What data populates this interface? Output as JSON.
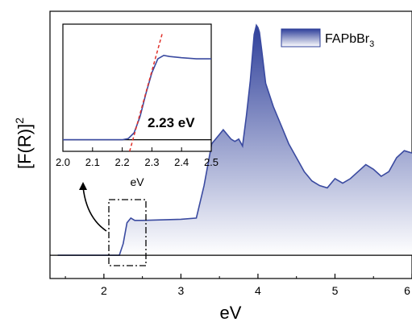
{
  "chart_data": [
    {
      "type": "area",
      "xlabel": "eV",
      "ylabel_base": "[F(R)]",
      "ylabel_sup": "2",
      "xlim": [
        1.3,
        6.0
      ],
      "xticks": [
        2,
        3,
        4,
        5,
        6
      ],
      "xtick_labels": [
        "2",
        "3",
        "4",
        "5",
        "6"
      ],
      "yticks_visible": false,
      "grid": false,
      "legend": {
        "position": "top-right",
        "label_base": "FAPbBr",
        "label_sub": "3"
      },
      "colors": {
        "line": "#3a4aa0",
        "fill_top": "#2e3f9a",
        "fill_bottom": "#ffffff",
        "baseline": "#000000"
      },
      "baseline_y": 0.0,
      "ylim": [
        -0.1,
        1.05
      ],
      "series": [
        {
          "x": [
            1.4,
            2.2,
            2.25,
            2.3,
            2.35,
            2.4,
            2.5,
            3.0,
            3.2,
            3.3,
            3.4,
            3.5,
            3.55,
            3.6,
            3.65,
            3.7,
            3.75,
            3.8,
            3.85,
            3.9,
            3.95,
            3.98,
            4.0,
            4.02,
            4.05,
            4.1,
            4.2,
            4.3,
            4.4,
            4.5,
            4.6,
            4.7,
            4.8,
            4.9,
            5.0,
            5.1,
            5.2,
            5.3,
            5.4,
            5.5,
            5.6,
            5.7,
            5.8,
            5.9,
            6.0
          ],
          "y": [
            0.0,
            0.0,
            0.05,
            0.14,
            0.16,
            0.15,
            0.15,
            0.155,
            0.16,
            0.3,
            0.48,
            0.52,
            0.54,
            0.52,
            0.5,
            0.49,
            0.5,
            0.47,
            0.6,
            0.75,
            0.95,
            0.99,
            0.98,
            0.96,
            0.88,
            0.74,
            0.64,
            0.56,
            0.48,
            0.42,
            0.36,
            0.32,
            0.3,
            0.29,
            0.33,
            0.31,
            0.33,
            0.36,
            0.39,
            0.37,
            0.34,
            0.36,
            0.42,
            0.45,
            0.44
          ]
        }
      ]
    },
    {
      "type": "line",
      "xlabel": "eV",
      "xlim": [
        2.0,
        2.5
      ],
      "xticks": [
        2.0,
        2.1,
        2.2,
        2.3,
        2.4,
        2.5
      ],
      "xtick_labels": [
        "2.0",
        "2.1",
        "2.2",
        "2.3",
        "2.4",
        "2.5"
      ],
      "ylim": [
        -0.1,
        1.0
      ],
      "annotation": "2.23 eV",
      "series": [
        {
          "x": [
            2.0,
            2.2,
            2.22,
            2.24,
            2.26,
            2.28,
            2.3,
            2.32,
            2.34,
            2.36,
            2.4,
            2.45,
            2.5
          ],
          "y": [
            0.0,
            0.0,
            0.01,
            0.06,
            0.2,
            0.4,
            0.58,
            0.7,
            0.73,
            0.72,
            0.71,
            0.7,
            0.7
          ]
        }
      ],
      "tangent": {
        "x": [
          2.225,
          2.335
        ],
        "y": [
          -0.1,
          0.92
        ]
      }
    }
  ]
}
